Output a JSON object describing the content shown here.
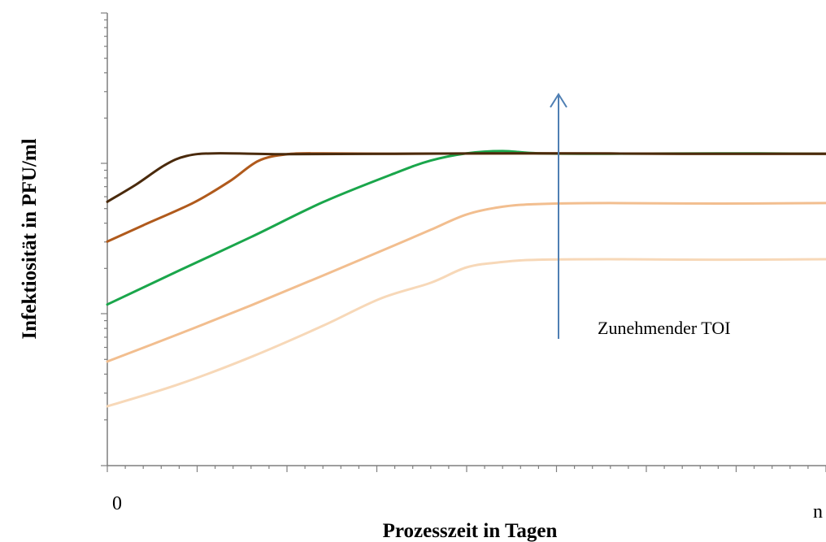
{
  "chart_data": {
    "type": "line",
    "title": "",
    "xlabel": "Prozesszeit in Tagen",
    "ylabel": "Infektiosität  in PFU/ml",
    "x_tick_labels": {
      "start": "0",
      "end": "n"
    },
    "xlim": [
      0,
      1
    ],
    "ylim": [
      0,
      1
    ],
    "y_scale": "log",
    "grid": false,
    "legend": "none",
    "annotation": {
      "text": "Zunehmender TOI",
      "arrow_direction": "up"
    },
    "series": [
      {
        "color": "#4a2a0c",
        "points": [
          [
            0.0,
            0.583
          ],
          [
            0.04,
            0.621
          ],
          [
            0.08,
            0.664
          ],
          [
            0.11,
            0.684
          ],
          [
            0.15,
            0.69
          ],
          [
            0.25,
            0.688
          ],
          [
            0.4,
            0.689
          ],
          [
            0.6,
            0.69
          ],
          [
            0.8,
            0.689
          ],
          [
            1.0,
            0.689
          ]
        ]
      },
      {
        "color": "#b05a1c",
        "points": [
          [
            0.0,
            0.495
          ],
          [
            0.05,
            0.531
          ],
          [
            0.12,
            0.581
          ],
          [
            0.17,
            0.628
          ],
          [
            0.21,
            0.673
          ],
          [
            0.25,
            0.688
          ],
          [
            0.3,
            0.69
          ],
          [
            0.4,
            0.689
          ],
          [
            0.6,
            0.69
          ],
          [
            0.8,
            0.689
          ],
          [
            1.0,
            0.689
          ]
        ]
      },
      {
        "color": "#1aa64b",
        "points": [
          [
            0.0,
            0.356
          ],
          [
            0.1,
            0.431
          ],
          [
            0.2,
            0.505
          ],
          [
            0.3,
            0.582
          ],
          [
            0.4,
            0.646
          ],
          [
            0.45,
            0.674
          ],
          [
            0.5,
            0.69
          ],
          [
            0.55,
            0.695
          ],
          [
            0.6,
            0.69
          ],
          [
            0.7,
            0.689
          ],
          [
            0.85,
            0.69
          ],
          [
            1.0,
            0.689
          ]
        ]
      },
      {
        "color": "#f2be8f",
        "points": [
          [
            0.0,
            0.23
          ],
          [
            0.1,
            0.291
          ],
          [
            0.2,
            0.354
          ],
          [
            0.3,
            0.42
          ],
          [
            0.4,
            0.487
          ],
          [
            0.45,
            0.521
          ],
          [
            0.5,
            0.555
          ],
          [
            0.55,
            0.572
          ],
          [
            0.6,
            0.578
          ],
          [
            0.7,
            0.58
          ],
          [
            0.85,
            0.579
          ],
          [
            1.0,
            0.58
          ]
        ]
      },
      {
        "color": "#f7d8b8",
        "points": [
          [
            0.0,
            0.131
          ],
          [
            0.1,
            0.18
          ],
          [
            0.2,
            0.24
          ],
          [
            0.3,
            0.309
          ],
          [
            0.38,
            0.369
          ],
          [
            0.45,
            0.404
          ],
          [
            0.5,
            0.438
          ],
          [
            0.55,
            0.45
          ],
          [
            0.6,
            0.455
          ],
          [
            0.7,
            0.456
          ],
          [
            0.85,
            0.455
          ],
          [
            1.0,
            0.456
          ]
        ]
      }
    ]
  }
}
